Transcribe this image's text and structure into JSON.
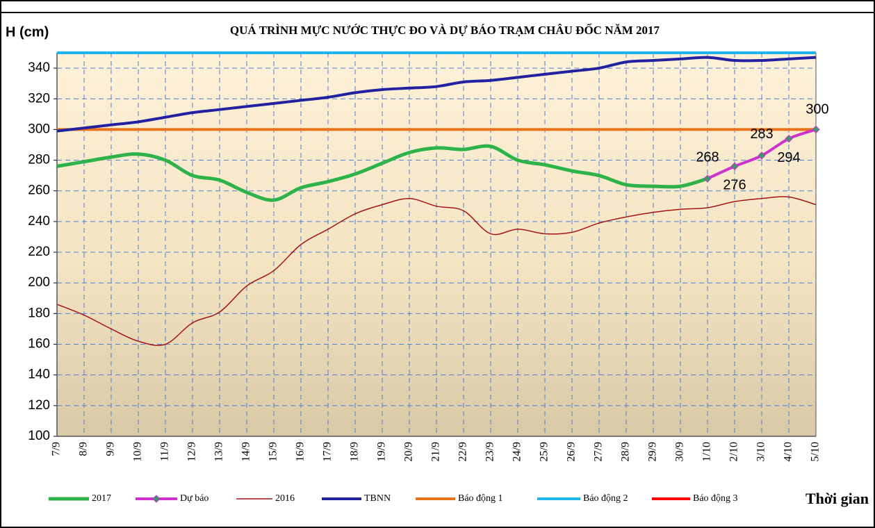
{
  "chart_data": {
    "type": "line",
    "title": "QUÁ TRÌNH MỰC NƯỚC THỰC ĐO VÀ DỰ BÁO TRẠM CHÂU ĐỐC NĂM 2017",
    "y_label": "H (cm)",
    "x_label": "Thời gian",
    "categories": [
      "7/9",
      "8/9",
      "9/9",
      "10/9",
      "11/9",
      "12/9",
      "13/9",
      "14/9",
      "15/9",
      "16/9",
      "17/9",
      "18/9",
      "19/9",
      "20/9",
      "21/9",
      "22/9",
      "23/9",
      "24/9",
      "25/9",
      "26/9",
      "27/9",
      "28/9",
      "29/9",
      "30/9",
      "1/10",
      "2/10",
      "3/10",
      "4/10",
      "5/10"
    ],
    "ylim": [
      100,
      350
    ],
    "yticks": [
      100,
      120,
      140,
      160,
      180,
      200,
      220,
      240,
      260,
      280,
      300,
      320,
      340
    ],
    "grid": true,
    "series": [
      {
        "name": "2017",
        "color": "#2db34a",
        "values": [
          276,
          279,
          282,
          284,
          280,
          270,
          267,
          259,
          254,
          262,
          266,
          271,
          278,
          285,
          288,
          287,
          289,
          280,
          277,
          273,
          270,
          264,
          263,
          263,
          268,
          null,
          null,
          null,
          null
        ]
      },
      {
        "name": "Dự báo",
        "color": "#cc33cc",
        "values": [
          null,
          null,
          null,
          null,
          null,
          null,
          null,
          null,
          null,
          null,
          null,
          null,
          null,
          null,
          null,
          null,
          null,
          null,
          null,
          null,
          null,
          null,
          null,
          null,
          268,
          276,
          283,
          294,
          300
        ]
      },
      {
        "name": "2016",
        "color": "#a31515",
        "values": [
          186,
          179,
          170,
          162,
          160,
          174,
          181,
          198,
          208,
          225,
          235,
          245,
          251,
          255,
          250,
          247,
          232,
          235,
          232,
          233,
          239,
          243,
          246,
          248,
          249,
          253,
          255,
          256,
          251
        ]
      },
      {
        "name": "TBNN",
        "color": "#2222a0",
        "values": [
          299,
          301,
          303,
          305,
          308,
          311,
          313,
          315,
          317,
          319,
          321,
          324,
          326,
          327,
          328,
          331,
          332,
          334,
          336,
          338,
          340,
          344,
          345,
          346,
          347,
          345,
          345,
          346,
          347
        ]
      },
      {
        "name": "Báo động 1",
        "color": "#e8731a",
        "values": [
          300,
          300,
          300,
          300,
          300,
          300,
          300,
          300,
          300,
          300,
          300,
          300,
          300,
          300,
          300,
          300,
          300,
          300,
          300,
          300,
          300,
          300,
          300,
          300,
          300,
          300,
          300,
          300,
          300
        ]
      },
      {
        "name": "Báo động 2",
        "color": "#1fb5ea",
        "values": [
          350,
          350,
          350,
          350,
          350,
          350,
          350,
          350,
          350,
          350,
          350,
          350,
          350,
          350,
          350,
          350,
          350,
          350,
          350,
          350,
          350,
          350,
          350,
          350,
          350,
          350,
          350,
          350,
          350
        ]
      },
      {
        "name": "Báo động 3",
        "color": "#ff0000",
        "values": [
          null,
          null,
          null,
          null,
          null,
          null,
          null,
          null,
          null,
          null,
          null,
          null,
          null,
          null,
          null,
          null,
          null,
          null,
          null,
          null,
          null,
          null,
          null,
          null,
          null,
          null,
          null,
          null,
          null
        ]
      }
    ]
  }
}
